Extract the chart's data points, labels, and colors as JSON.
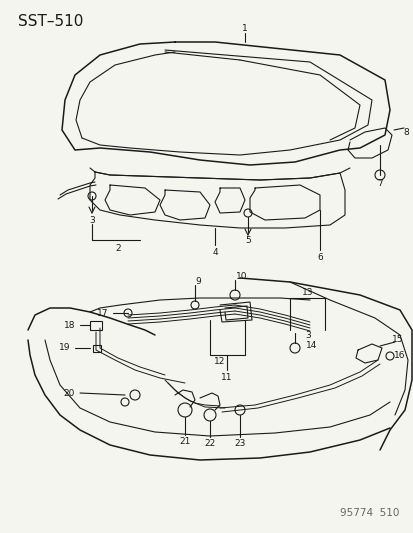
{
  "title": "SST–510",
  "footer": "95774  510",
  "bg_color": "#f5f5f0",
  "title_fontsize": 11,
  "footer_fontsize": 7.5,
  "fig_width": 4.14,
  "fig_height": 5.33,
  "dpi": 100,
  "line_color": "#1a1a1a",
  "label_fontsize": 6.5
}
